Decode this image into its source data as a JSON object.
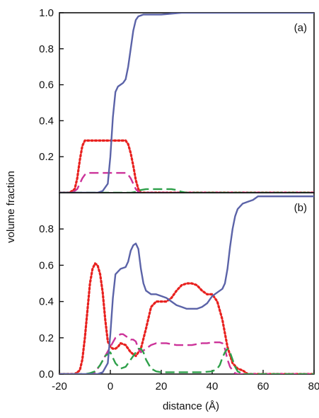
{
  "chart_data": [
    {
      "type": "line",
      "panel_label": "(a)",
      "xlim": [
        -20,
        80
      ],
      "ylim": [
        0,
        1.0
      ],
      "yticks": [
        "1.0",
        "0.8",
        "0.6",
        "0.4",
        "0.2"
      ],
      "ytick_values": [
        1.0,
        0.8,
        0.6,
        0.4,
        0.2
      ],
      "series": [
        {
          "style": "solid",
          "color": "#5b63a8",
          "x": [
            -20,
            -5,
            -3,
            -1,
            0,
            1,
            2,
            3,
            4,
            5,
            6,
            7,
            8,
            9,
            10,
            11,
            12,
            13,
            14,
            16,
            20,
            28,
            80
          ],
          "y": [
            0,
            0,
            0.01,
            0.05,
            0.2,
            0.42,
            0.56,
            0.59,
            0.6,
            0.61,
            0.63,
            0.7,
            0.8,
            0.9,
            0.96,
            0.98,
            0.985,
            0.99,
            0.99,
            0.99,
            0.99,
            1.0,
            1.0
          ]
        },
        {
          "style": "dotted",
          "color": "#e8211f",
          "x": [
            -20,
            -16,
            -14,
            -13,
            -12,
            -11,
            -10,
            0,
            6,
            7,
            8,
            9,
            10,
            11,
            12,
            80
          ],
          "y": [
            0,
            0,
            0.02,
            0.08,
            0.18,
            0.26,
            0.29,
            0.29,
            0.29,
            0.27,
            0.22,
            0.15,
            0.07,
            0.02,
            0,
            0
          ]
        },
        {
          "style": "dashed",
          "color": "#cc3399",
          "x": [
            -20,
            -15,
            -13,
            -12,
            -11,
            -10,
            -9,
            0,
            6,
            7,
            8,
            9,
            10,
            11,
            12,
            80
          ],
          "y": [
            0,
            0,
            0.02,
            0.05,
            0.08,
            0.1,
            0.11,
            0.11,
            0.11,
            0.1,
            0.08,
            0.05,
            0.02,
            0.005,
            0,
            0
          ]
        },
        {
          "style": "dashed",
          "color": "#2ea04a",
          "x": [
            -20,
            8,
            10,
            12,
            14,
            20,
            24,
            26,
            28,
            30,
            80
          ],
          "y": [
            0,
            0,
            0.005,
            0.015,
            0.02,
            0.02,
            0.02,
            0.015,
            0.005,
            0,
            0
          ]
        }
      ]
    },
    {
      "type": "line",
      "panel_label": "(b)",
      "xlim": [
        -20,
        80
      ],
      "ylim": [
        0,
        1.0
      ],
      "xticks": [
        "-20",
        "0",
        "20",
        "40",
        "60",
        "80"
      ],
      "xtick_values": [
        -20,
        0,
        20,
        40,
        60,
        80
      ],
      "yticks": [
        "0.8",
        "0.6",
        "0.4",
        "0.2",
        "0.0"
      ],
      "ytick_values": [
        0.8,
        0.6,
        0.4,
        0.2,
        0.0
      ],
      "xlabel": "distance (Å)",
      "series": [
        {
          "style": "solid",
          "color": "#5b63a8",
          "x": [
            -20,
            -5,
            -3,
            -1,
            0,
            1,
            2,
            4,
            6,
            7,
            8,
            9,
            10,
            11,
            12,
            13,
            14,
            16,
            18,
            20,
            22,
            24,
            26,
            28,
            30,
            32,
            34,
            36,
            38,
            40,
            42,
            44,
            45,
            46,
            47,
            48,
            49,
            50,
            52,
            54,
            56,
            58,
            80
          ],
          "y": [
            0,
            0,
            0.01,
            0.06,
            0.22,
            0.42,
            0.55,
            0.58,
            0.59,
            0.62,
            0.68,
            0.71,
            0.72,
            0.69,
            0.58,
            0.5,
            0.46,
            0.44,
            0.44,
            0.43,
            0.42,
            0.4,
            0.38,
            0.37,
            0.36,
            0.36,
            0.36,
            0.37,
            0.39,
            0.43,
            0.45,
            0.47,
            0.5,
            0.58,
            0.7,
            0.8,
            0.87,
            0.91,
            0.94,
            0.95,
            0.96,
            0.98,
            0.98
          ]
        },
        {
          "style": "dotted",
          "color": "#e8211f",
          "x": [
            -20,
            -14,
            -12,
            -11,
            -10,
            -9,
            -8,
            -7,
            -6,
            -5,
            -4,
            -3,
            -2,
            -1,
            0,
            1,
            2,
            3,
            4,
            6,
            8,
            10,
            12,
            14,
            16,
            18,
            20,
            22,
            24,
            26,
            28,
            30,
            32,
            34,
            36,
            38,
            40,
            42,
            44,
            46,
            48,
            50,
            52,
            54,
            80
          ],
          "y": [
            0,
            0,
            0.02,
            0.08,
            0.2,
            0.35,
            0.5,
            0.58,
            0.61,
            0.6,
            0.55,
            0.45,
            0.3,
            0.18,
            0.15,
            0.14,
            0.14,
            0.15,
            0.17,
            0.16,
            0.12,
            0.1,
            0.14,
            0.25,
            0.37,
            0.4,
            0.4,
            0.4,
            0.42,
            0.46,
            0.49,
            0.5,
            0.5,
            0.49,
            0.46,
            0.44,
            0.44,
            0.4,
            0.3,
            0.15,
            0.06,
            0.03,
            0.02,
            0,
            0
          ]
        },
        {
          "style": "dashed",
          "color": "#cc3399",
          "x": [
            -20,
            -8,
            -6,
            -4,
            -2,
            0,
            2,
            4,
            5,
            6,
            7,
            8,
            9,
            10,
            11,
            12,
            14,
            16,
            18,
            20,
            22,
            24,
            26,
            28,
            30,
            32,
            34,
            36,
            38,
            40,
            42,
            43,
            44,
            45,
            46,
            47,
            48,
            49,
            50,
            80
          ],
          "y": [
            0,
            0,
            0.01,
            0.05,
            0.1,
            0.15,
            0.2,
            0.22,
            0.22,
            0.21,
            0.2,
            0.19,
            0.19,
            0.18,
            0.14,
            0.12,
            0.14,
            0.16,
            0.17,
            0.17,
            0.17,
            0.165,
            0.16,
            0.16,
            0.16,
            0.16,
            0.165,
            0.17,
            0.17,
            0.175,
            0.175,
            0.175,
            0.17,
            0.14,
            0.08,
            0.04,
            0.02,
            0.005,
            0,
            0
          ]
        },
        {
          "style": "dashed",
          "color": "#2ea04a",
          "x": [
            -20,
            -10,
            -8,
            -6,
            -4,
            -2,
            0,
            2,
            4,
            6,
            8,
            10,
            11,
            12,
            13,
            14,
            16,
            18,
            20,
            24,
            28,
            32,
            36,
            40,
            42,
            43,
            44,
            45,
            46,
            47,
            48,
            49,
            50,
            52,
            80
          ],
          "y": [
            0,
            0,
            0.005,
            0.015,
            0.05,
            0.1,
            0.12,
            0.06,
            0.03,
            0.04,
            0.08,
            0.12,
            0.14,
            0.14,
            0.12,
            0.08,
            0.03,
            0.015,
            0.01,
            0.01,
            0.01,
            0.01,
            0.01,
            0.015,
            0.03,
            0.05,
            0.09,
            0.12,
            0.14,
            0.12,
            0.08,
            0.04,
            0.015,
            0,
            0
          ]
        }
      ]
    }
  ],
  "shared_ylabel": "volume fraction"
}
